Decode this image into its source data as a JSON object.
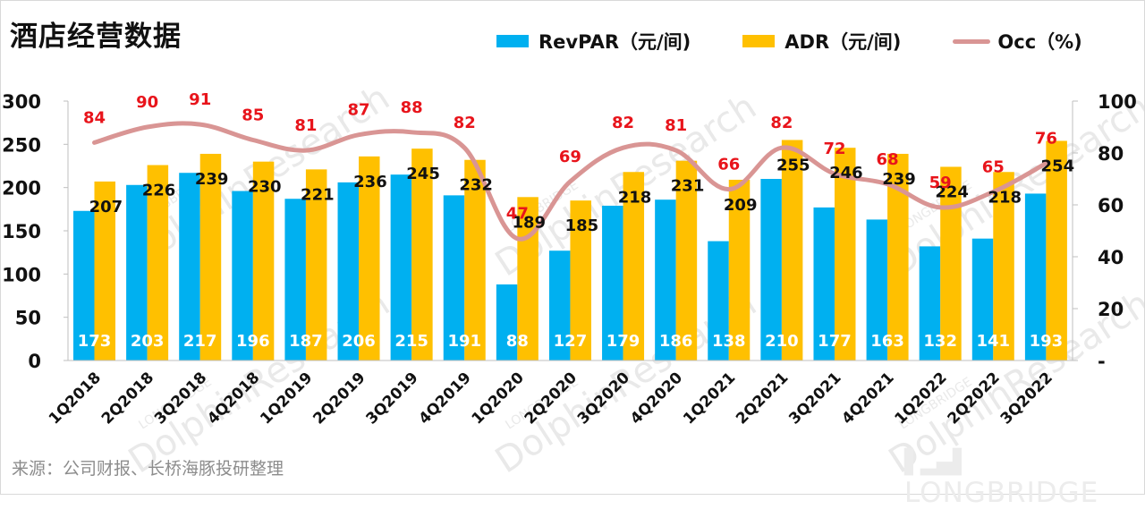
{
  "header": {
    "title": "酒店经营数据"
  },
  "footer": {
    "source": "来源：公司财报、长桥海豚投研整理"
  },
  "watermark": {
    "brand": "LONGBRIDGE",
    "text": "DolphinResearch"
  },
  "colors": {
    "revpar": "#00b0f0",
    "adr": "#ffc000",
    "occ": "#d99594",
    "occ_label": "#e8141b",
    "axis": "#bfbfbf"
  },
  "legend": [
    {
      "key": "revpar",
      "label": "RevPAR（元/间)"
    },
    {
      "key": "adr",
      "label": "ADR（元/间)"
    },
    {
      "key": "occ",
      "label": "Occ（%)"
    }
  ],
  "chart_data": {
    "type": "bar",
    "title": "酒店经营数据",
    "xlabel": "",
    "ylabel": "",
    "categories": [
      "1Q2018",
      "2Q2018",
      "3Q2018",
      "4Q2018",
      "1Q2019",
      "2Q2019",
      "3Q2019",
      "4Q2019",
      "1Q2020",
      "2Q2020",
      "3Q2020",
      "4Q2020",
      "1Q2021",
      "2Q2021",
      "3Q2021",
      "4Q2021",
      "1Q2022",
      "2Q2022",
      "3Q2022"
    ],
    "series": [
      {
        "name": "RevPAR（元/间)",
        "type": "bar",
        "axis": "left",
        "values": [
          173,
          203,
          217,
          196,
          187,
          206,
          215,
          191,
          88,
          127,
          179,
          186,
          138,
          210,
          177,
          163,
          132,
          141,
          193
        ]
      },
      {
        "name": "ADR（元/间)",
        "type": "bar",
        "axis": "left",
        "values": [
          207,
          226,
          239,
          230,
          221,
          236,
          245,
          232,
          189,
          185,
          218,
          231,
          209,
          255,
          246,
          239,
          224,
          218,
          254
        ]
      },
      {
        "name": "Occ（%)",
        "type": "line",
        "smooth": true,
        "axis": "right",
        "values": [
          84,
          90,
          91,
          85,
          81,
          87,
          88,
          82,
          47,
          69,
          82,
          81,
          66,
          82,
          72,
          68,
          59,
          65,
          76
        ]
      }
    ],
    "ylim": [
      0,
      300
    ],
    "yticks": [
      "0",
      "50",
      "100",
      "150",
      "200",
      "250",
      "300"
    ],
    "y2lim": [
      0,
      100
    ],
    "y2ticks": [
      "-",
      "20",
      "40",
      "60",
      "80",
      "100"
    ],
    "grid": false,
    "legend_position": "top-right",
    "x_tick_rotation": -45
  }
}
